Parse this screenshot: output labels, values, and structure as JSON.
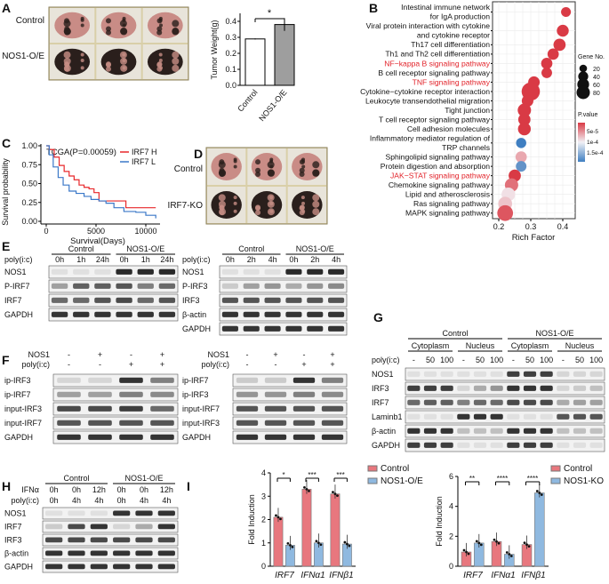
{
  "panels": {
    "A": "A",
    "B": "B",
    "C": "C",
    "D": "D",
    "E": "E",
    "F": "F",
    "G": "G",
    "H": "H",
    "I": "I"
  },
  "panel_a": {
    "photo_rows": [
      "Control",
      "NOS1-O/E"
    ],
    "chart_data": {
      "type": "bar",
      "ylabel": "Tumor Weight(g)",
      "categories": [
        "Control",
        "NOS1-O/E"
      ],
      "values": [
        0.29,
        0.38
      ],
      "yticks": [
        "0.0",
        "0.1",
        "0.2",
        "0.3",
        "0.4"
      ],
      "ylim": [
        0,
        0.45
      ],
      "significance": "*",
      "colors": [
        "#ffffff",
        "#9e9e9e"
      ]
    }
  },
  "panel_b": {
    "chart_data": {
      "type": "scatter",
      "xlabel": "Rich Factor",
      "xticks": [
        "0.2",
        "0.3",
        "0.4"
      ],
      "xlim": [
        0.19,
        0.43
      ],
      "size_legend_title": "Gene No.",
      "size_legend": [
        "20",
        "40",
        "60",
        "80"
      ],
      "color_legend_title": "P.value",
      "color_legend": [
        "5e-5",
        "1e-4",
        "1.5e-4"
      ],
      "pathways": [
        {
          "name": "Intestinal immune network for IgA production",
          "lines": [
            "Intestinal immune network",
            "for IgA production"
          ],
          "rich": 0.41,
          "genes": 18,
          "p": 4e-05,
          "highlight": false
        },
        {
          "name": "Viral protein interaction with cytokine and cytokine receptor",
          "lines": [
            "Viral protein interaction with cytokine",
            "and cytokine receptor"
          ],
          "rich": 0.4,
          "genes": 30,
          "p": 4e-05,
          "highlight": false
        },
        {
          "name": "Th17 cell differentiation",
          "lines": [
            "Th17 cell differentiation"
          ],
          "rich": 0.39,
          "genes": 32,
          "p": 4e-05,
          "highlight": false
        },
        {
          "name": "Th1 and Th2 cell differentiation",
          "lines": [
            "Th1 and Th2 cell differentiation"
          ],
          "rich": 0.37,
          "genes": 26,
          "p": 4e-05,
          "highlight": false
        },
        {
          "name": "NF-kappa B signaling pathway",
          "lines": [
            "NF−kappa B signaling pathway"
          ],
          "rich": 0.35,
          "genes": 26,
          "p": 4e-05,
          "highlight": true
        },
        {
          "name": "B cell receptor signaling pathway",
          "lines": [
            "B cell receptor signaling pathway"
          ],
          "rich": 0.35,
          "genes": 22,
          "p": 4e-05,
          "highlight": false
        },
        {
          "name": "TNF signaling pathway",
          "lines": [
            "TNF signaling pathway"
          ],
          "rich": 0.31,
          "genes": 28,
          "p": 4e-05,
          "highlight": true
        },
        {
          "name": "Cytokine-cytokine receptor interaction",
          "lines": [
            "Cytokine−cytokine receptor interaction"
          ],
          "rich": 0.3,
          "genes": 85,
          "p": 4e-05,
          "highlight": false
        },
        {
          "name": "Leukocyte transendothelial migration",
          "lines": [
            "Leukocyte transendothelial migration"
          ],
          "rich": 0.29,
          "genes": 28,
          "p": 4e-05,
          "highlight": false
        },
        {
          "name": "Tight junction",
          "lines": [
            "Tight junction"
          ],
          "rich": 0.28,
          "genes": 40,
          "p": 4e-05,
          "highlight": false
        },
        {
          "name": "T cell receptor signaling pathway",
          "lines": [
            "T cell receptor signaling pathway"
          ],
          "rich": 0.28,
          "genes": 32,
          "p": 4e-05,
          "highlight": false
        },
        {
          "name": "Cell adhesion molecules",
          "lines": [
            "Cell adhesion molecules"
          ],
          "rich": 0.28,
          "genes": 36,
          "p": 4e-05,
          "highlight": false
        },
        {
          "name": "Inflammatory mediator regulation of TRP channels",
          "lines": [
            "Inflammatory mediator regulation of",
            "TRP channels"
          ],
          "rich": 0.27,
          "genes": 20,
          "p": 0.00015,
          "highlight": false
        },
        {
          "name": "Sphingolipid signaling pathway",
          "lines": [
            "Sphingolipid signaling pathway"
          ],
          "rich": 0.27,
          "genes": 26,
          "p": 8e-05,
          "highlight": false
        },
        {
          "name": "Protein digestion and absorption",
          "lines": [
            "Protein digestion and absorption"
          ],
          "rich": 0.27,
          "genes": 22,
          "p": 0.00014,
          "highlight": false
        },
        {
          "name": "JAK-STAT signaling pathway",
          "lines": [
            "JAK−STAT signaling pathway"
          ],
          "rich": 0.25,
          "genes": 32,
          "p": 4e-05,
          "highlight": true
        },
        {
          "name": "Chemokine signaling pathway",
          "lines": [
            "Chemokine signaling pathway"
          ],
          "rich": 0.24,
          "genes": 40,
          "p": 6e-05,
          "highlight": false
        },
        {
          "name": "Lipid and atherosclerosis",
          "lines": [
            "Lipid and atherosclerosis"
          ],
          "rich": 0.23,
          "genes": 42,
          "p": 0.0001,
          "highlight": false
        },
        {
          "name": "Ras signaling pathway",
          "lines": [
            "Ras signaling pathway"
          ],
          "rich": 0.22,
          "genes": 44,
          "p": 9e-05,
          "highlight": false
        },
        {
          "name": "MAPK signaling pathway",
          "lines": [
            "MAPK signaling pathway"
          ],
          "rich": 0.22,
          "genes": 60,
          "p": 5e-05,
          "highlight": false
        }
      ],
      "colors": {
        "low_p": "#d93a45",
        "mid_p": "#f1f1f5",
        "high_p": "#3f7fc1",
        "highlight_text": "#e2232a"
      }
    }
  },
  "panel_c": {
    "chart_data": {
      "type": "line",
      "title": "TCGA(P=0.00059)",
      "xlabel": "Survival(Days)",
      "ylabel": "Survival probability",
      "xticks": [
        "0",
        "5000",
        "10000"
      ],
      "yticks": [
        "0.00",
        "0.25",
        "0.50",
        "0.75",
        "1.00"
      ],
      "xlim": [
        0,
        11000
      ],
      "ylim": [
        0,
        1
      ],
      "series": [
        {
          "name": "IRF7 H",
          "color": "#e8282b",
          "x": [
            0,
            300,
            800,
            1300,
            1800,
            2300,
            2800,
            3300,
            3800,
            4300,
            4800,
            5300,
            6000,
            7000,
            8000,
            8001,
            11000
          ],
          "y": [
            1,
            0.95,
            0.85,
            0.74,
            0.66,
            0.6,
            0.55,
            0.48,
            0.45,
            0.43,
            0.38,
            0.27,
            0.27,
            0.27,
            0.27,
            0.18,
            0.18
          ]
        },
        {
          "name": "IRF7 L",
          "color": "#3b78c8",
          "x": [
            0,
            300,
            700,
            1200,
            1700,
            2300,
            3000,
            3800,
            4500,
            5300,
            6000,
            6800,
            7800,
            9000,
            10000,
            11000
          ],
          "y": [
            1,
            0.88,
            0.72,
            0.58,
            0.48,
            0.4,
            0.37,
            0.33,
            0.29,
            0.27,
            0.24,
            0.18,
            0.13,
            0.12,
            0.08,
            0.04
          ]
        }
      ]
    }
  },
  "panel_d": {
    "photo_rows": [
      "Control",
      "IRF7-KO"
    ]
  },
  "blots": {
    "E_left": {
      "groups": [
        "Control",
        "NOS1-O/E"
      ],
      "cond_rows": [
        {
          "label": "poly(i:c)",
          "values": [
            "0h",
            "1h",
            "24h",
            "0h",
            "1h",
            "24h"
          ]
        }
      ],
      "rows": [
        {
          "label": "NOS1",
          "bands": [
            0.05,
            0.05,
            0.05,
            0.9,
            0.9,
            0.9
          ]
        },
        {
          "label": "P-IRF7",
          "bands": [
            0.35,
            0.65,
            0.65,
            0.7,
            0.5,
            0.6
          ]
        },
        {
          "label": "IRF7",
          "bands": [
            0.6,
            0.6,
            0.7,
            0.75,
            0.6,
            0.7
          ]
        },
        {
          "label": "GAPDH",
          "bands": [
            0.85,
            0.85,
            0.85,
            0.85,
            0.85,
            0.85
          ]
        }
      ]
    },
    "E_right": {
      "groups": [
        "Control",
        "NOS1-O/E"
      ],
      "cond_rows": [
        {
          "label": "poly(i:c)",
          "values": [
            "0h",
            "2h",
            "4h",
            "0h",
            "2h",
            "4h"
          ]
        }
      ],
      "rows": [
        {
          "label": "NOS1",
          "bands": [
            0.05,
            0.05,
            0.05,
            0.9,
            0.9,
            0.9
          ]
        },
        {
          "label": "P-IRF3",
          "bands": [
            0.15,
            0.35,
            0.4,
            0.3,
            0.4,
            0.45
          ]
        },
        {
          "label": "IRF3",
          "bands": [
            0.7,
            0.7,
            0.7,
            0.7,
            0.7,
            0.7
          ]
        },
        {
          "label": "β-actin",
          "bands": [
            0.85,
            0.85,
            0.85,
            0.85,
            0.85,
            0.85
          ]
        },
        {
          "label": "GAPDH",
          "bands": [
            0.85,
            0.85,
            0.85,
            0.85,
            0.85,
            0.85
          ]
        }
      ]
    },
    "F_left": {
      "groups": [],
      "cond_rows": [
        {
          "label": "NOS1",
          "values": [
            "-",
            "+",
            "-",
            "+"
          ]
        },
        {
          "label": "poly(i:c)",
          "values": [
            "-",
            "-",
            "+",
            "+"
          ]
        }
      ],
      "rows": [
        {
          "label": "ip-IRF3",
          "bands": [
            0.1,
            0.1,
            0.85,
            0.5
          ]
        },
        {
          "label": "ip-IRF7",
          "bands": [
            0.35,
            0.35,
            0.5,
            0.45
          ]
        },
        {
          "label": "input-IRF3",
          "bands": [
            0.75,
            0.75,
            0.8,
            0.6
          ]
        },
        {
          "label": "input-IRF7",
          "bands": [
            0.7,
            0.7,
            0.7,
            0.7
          ]
        },
        {
          "label": "GAPDH",
          "bands": [
            0.85,
            0.85,
            0.85,
            0.85
          ]
        }
      ]
    },
    "F_right": {
      "groups": [],
      "cond_rows": [
        {
          "label": "NOS1",
          "values": [
            "-",
            "+",
            "-",
            "+"
          ]
        },
        {
          "label": "poly(i:c)",
          "values": [
            "-",
            "-",
            "+",
            "+"
          ]
        }
      ],
      "rows": [
        {
          "label": "ip-IRF7",
          "bands": [
            0.15,
            0.15,
            0.85,
            0.5
          ]
        },
        {
          "label": "ip-IRF3",
          "bands": [
            0.4,
            0.4,
            0.5,
            0.45
          ]
        },
        {
          "label": "input-IRF7",
          "bands": [
            0.7,
            0.7,
            0.7,
            0.7
          ]
        },
        {
          "label": "input-IRF3",
          "bands": [
            0.7,
            0.7,
            0.7,
            0.7
          ]
        },
        {
          "label": "GAPDH",
          "bands": [
            0.85,
            0.85,
            0.85,
            0.85
          ]
        }
      ]
    },
    "G": {
      "groups": [
        "Control",
        "NOS1-O/E"
      ],
      "subgroups": [
        "Cytoplasm",
        "Nucleus",
        "Cytoplasm",
        "Nucleus"
      ],
      "cond_rows": [
        {
          "label": "poly(i:c)",
          "values": [
            "-",
            "50",
            "100",
            "-",
            "50",
            "100",
            "-",
            "50",
            "100",
            "-",
            "50",
            "100"
          ]
        }
      ],
      "rows": [
        {
          "label": "NOS1",
          "bands": [
            0.05,
            0.05,
            0.05,
            0.05,
            0.05,
            0.05,
            0.8,
            0.8,
            0.8,
            0.1,
            0.1,
            0.1
          ]
        },
        {
          "label": "IRF3",
          "bands": [
            0.8,
            0.8,
            0.8,
            0.1,
            0.3,
            0.4,
            0.85,
            0.85,
            0.85,
            0.1,
            0.15,
            0.2
          ]
        },
        {
          "label": "IRF7",
          "bands": [
            0.6,
            0.65,
            0.65,
            0.5,
            0.6,
            0.6,
            0.75,
            0.75,
            0.75,
            0.3,
            0.35,
            0.35
          ]
        },
        {
          "label": "Laminb1",
          "bands": [
            0.05,
            0.05,
            0.05,
            0.85,
            0.85,
            0.85,
            0.05,
            0.05,
            0.05,
            0.7,
            0.7,
            0.7
          ]
        },
        {
          "label": "β-actin",
          "bands": [
            0.85,
            0.85,
            0.85,
            0.2,
            0.2,
            0.2,
            0.85,
            0.85,
            0.85,
            0.2,
            0.2,
            0.2
          ]
        },
        {
          "label": "GAPDH",
          "bands": [
            0.8,
            0.8,
            0.8,
            0.05,
            0.05,
            0.05,
            0.8,
            0.8,
            0.8,
            0.05,
            0.05,
            0.05
          ]
        }
      ]
    },
    "H": {
      "groups": [
        "Control",
        "NOS1-O/E"
      ],
      "cond_rows": [
        {
          "label": "IFNα",
          "values": [
            "0h",
            "0h",
            "12h",
            "0h",
            "0h",
            "12h"
          ]
        },
        {
          "label": "poly(i:c)",
          "values": [
            "0h",
            "4h",
            "4h",
            "0h",
            "4h",
            "4h"
          ]
        }
      ],
      "rows": [
        {
          "label": "NOS1",
          "bands": [
            0.05,
            0.05,
            0.05,
            0.85,
            0.85,
            0.85
          ]
        },
        {
          "label": "IRF7",
          "bands": [
            0.15,
            0.75,
            0.85,
            0.1,
            0.3,
            0.85
          ]
        },
        {
          "label": "IRF3",
          "bands": [
            0.75,
            0.75,
            0.75,
            0.75,
            0.75,
            0.75
          ]
        },
        {
          "label": "β-actin",
          "bands": [
            0.85,
            0.85,
            0.85,
            0.85,
            0.85,
            0.85
          ]
        },
        {
          "label": "GAPDH",
          "bands": [
            0.85,
            0.85,
            0.85,
            0.85,
            0.85,
            0.85
          ]
        }
      ]
    }
  },
  "panel_i": {
    "chart_data": [
      {
        "type": "bar",
        "ylabel": "Fold Induction",
        "categories": [
          "IRF7",
          "IFNα1",
          "IFNβ1"
        ],
        "yticks": [
          "0",
          "1",
          "2",
          "3",
          "4"
        ],
        "ylim": [
          0,
          4
        ],
        "series": [
          {
            "name": "Control",
            "color": "#e8777e",
            "values": [
              2.1,
              3.3,
              3.1
            ]
          },
          {
            "name": "NOS1-O/E",
            "color": "#8fb9e0",
            "values": [
              0.9,
              1.0,
              0.95
            ]
          }
        ],
        "significance": [
          "*",
          "***",
          "***"
        ]
      },
      {
        "type": "bar",
        "ylabel": "Fold Induction",
        "categories": [
          "IRF7",
          "IFNα1",
          "IFNβ1"
        ],
        "yticks": [
          "0",
          "2",
          "4",
          "6"
        ],
        "ylim": [
          0,
          6
        ],
        "series": [
          {
            "name": "Control",
            "color": "#e8777e",
            "values": [
              0.95,
              1.65,
              1.45
            ]
          },
          {
            "name": "NOS1-KO",
            "color": "#8fb9e0",
            "values": [
              1.55,
              0.8,
              4.9
            ]
          }
        ],
        "significance": [
          "**",
          "****",
          "****"
        ]
      }
    ]
  }
}
